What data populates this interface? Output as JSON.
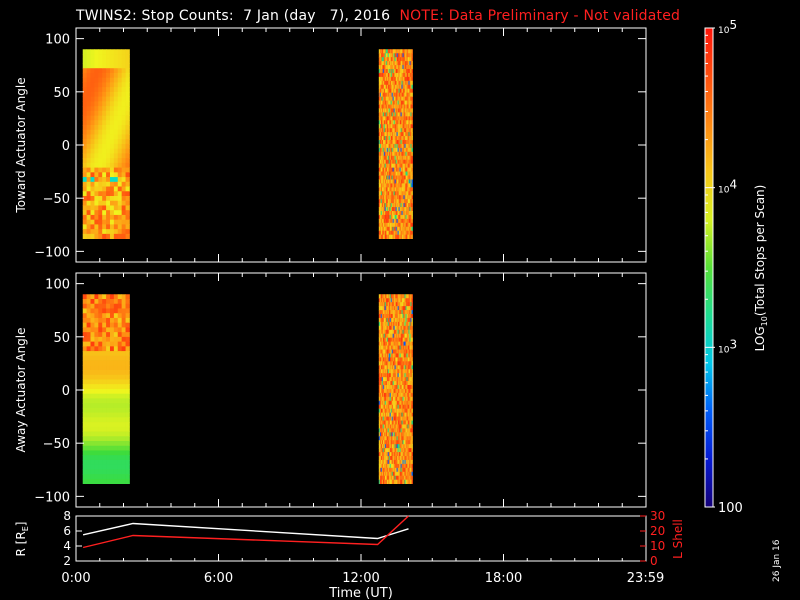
{
  "title": {
    "main": "TWINS2: Stop Counts:  7 Jan (day   7), 2016",
    "note": "NOTE: Data Preliminary - Not validated"
  },
  "side_date": "26 Jan 16",
  "colors": {
    "background": "#000000",
    "axes": "#ffffff",
    "note": "#ff2020",
    "r_line": "#ffffff",
    "lshell_line": "#ff2020"
  },
  "chart_data": [
    {
      "type": "heatmap",
      "panel": "toward",
      "ylabel": "Toward Actuator Angle",
      "ylim": [
        -110,
        110
      ],
      "yticks": [
        100,
        50,
        0,
        -50,
        -100
      ],
      "xlim_hours": [
        0,
        24
      ],
      "blocks": [
        {
          "x_start": "0:17",
          "x_end": "2:15",
          "y_range": [
            -88,
            90
          ],
          "style": "smooth"
        },
        {
          "x_start": "12:45",
          "x_end": "14:10",
          "y_range": [
            -88,
            90
          ],
          "style": "noisy"
        }
      ]
    },
    {
      "type": "heatmap",
      "panel": "away",
      "ylabel": "Away Actuator Angle",
      "ylim": [
        -110,
        110
      ],
      "yticks": [
        100,
        50,
        0,
        -50,
        -100
      ],
      "xlim_hours": [
        0,
        24
      ],
      "blocks": [
        {
          "x_start": "0:17",
          "x_end": "2:15",
          "y_range": [
            -88,
            90
          ],
          "style": "smooth"
        },
        {
          "x_start": "12:45",
          "x_end": "14:10",
          "y_range": [
            -88,
            90
          ],
          "style": "noisy"
        }
      ]
    },
    {
      "type": "line",
      "panel": "orbit",
      "ylabel": "R [R",
      "ylabel_sub": "E",
      "ylabel_end": "]",
      "y2label": "L Shell",
      "ylim": [
        2,
        8
      ],
      "yticks": [
        2,
        4,
        6,
        8
      ],
      "y2lim": [
        0,
        30
      ],
      "y2ticks": [
        0,
        10,
        20,
        30
      ],
      "xlabel": "Time (UT)",
      "xticks": [
        "0:00",
        "6:00",
        "12:00",
        "18:00",
        "23:59"
      ],
      "series": [
        {
          "axis": "left",
          "x_hours": [
            0.3,
            2.4,
            12.7,
            14.0
          ],
          "values": [
            5.5,
            7.0,
            5.0,
            6.3
          ]
        },
        {
          "axis": "right",
          "x_hours": [
            0.3,
            2.4,
            12.7,
            14.0
          ],
          "values": [
            9,
            17,
            11,
            30
          ]
        }
      ]
    }
  ],
  "colorbar": {
    "label_prefix": "LOG",
    "label_sub": "10",
    "label_suffix": "(Total Stops per Scan)",
    "range": [
      100,
      100000
    ],
    "ticks": [
      {
        "base": "10",
        "exp": "5",
        "value": 100000
      },
      {
        "base": "10",
        "exp": "4",
        "value": 10000
      },
      {
        "base": "10",
        "exp": "3",
        "value": 1000
      },
      {
        "plain": "100",
        "value": 100
      }
    ]
  }
}
